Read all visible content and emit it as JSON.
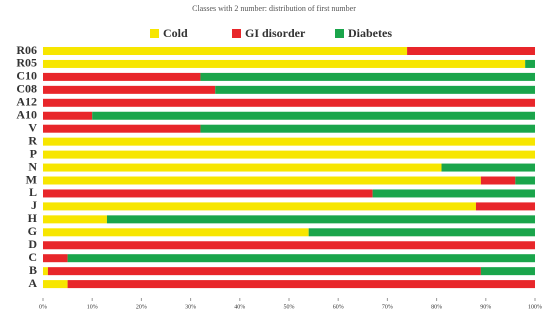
{
  "chart_data": {
    "type": "stacked-bar-horizontal",
    "title": "Classes with 2 number: distribution of first number",
    "categories": [
      "R06",
      "R05",
      "C10",
      "C08",
      "A12",
      "A10",
      "V",
      "R",
      "P",
      "N",
      "M",
      "L",
      "J",
      "H",
      "G",
      "D",
      "C",
      "B",
      "A"
    ],
    "series": [
      {
        "name": "Cold",
        "color": "#f7e600",
        "values": [
          74,
          98,
          0,
          0,
          0,
          0,
          0,
          100,
          100,
          81,
          89,
          0,
          88,
          13,
          54,
          0,
          0,
          1,
          5
        ]
      },
      {
        "name": "GI disorder",
        "color": "#e8262a",
        "values": [
          26,
          0,
          32,
          35,
          100,
          10,
          32,
          0,
          0,
          0,
          7,
          67,
          12,
          0,
          0,
          100,
          5,
          88,
          95
        ]
      },
      {
        "name": "Diabetes",
        "color": "#1aa54b",
        "values": [
          0,
          2,
          68,
          65,
          0,
          90,
          68,
          0,
          0,
          19,
          4,
          33,
          0,
          87,
          46,
          0,
          95,
          11,
          0
        ]
      }
    ],
    "xlim": [
      0,
      100
    ],
    "xticks": [
      {
        "value": 0,
        "label": "0%"
      },
      {
        "value": 10,
        "label": "10%"
      },
      {
        "value": 20,
        "label": "20%"
      },
      {
        "value": 30,
        "label": "30%"
      },
      {
        "value": 40,
        "label": "40%"
      },
      {
        "value": 50,
        "label": "50%"
      },
      {
        "value": 60,
        "label": "60%"
      },
      {
        "value": 70,
        "label": "70%"
      },
      {
        "value": 80,
        "label": "80%"
      },
      {
        "value": 90,
        "label": "90%"
      },
      {
        "value": 100,
        "label": "100%"
      }
    ]
  }
}
